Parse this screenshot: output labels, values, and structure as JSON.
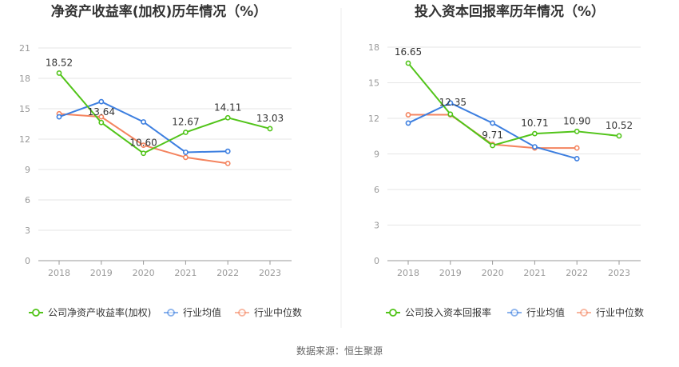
{
  "source_label": "数据来源：恒生聚源",
  "colors": {
    "company": "#52c41a",
    "industry_avg": "#3d7fe0",
    "industry_median": "#f4845f",
    "grid": "#e6e6e6",
    "axis": "#999999"
  },
  "chart_data": [
    {
      "type": "line",
      "title": "净资产收益率(加权)历年情况（%）",
      "categories": [
        "2018",
        "2019",
        "2020",
        "2021",
        "2022",
        "2023"
      ],
      "ylim": [
        0,
        21
      ],
      "yticks": [
        0,
        3,
        6,
        9,
        12,
        15,
        18,
        21
      ],
      "grid": true,
      "legend_position": "bottom",
      "series": [
        {
          "name": "公司净资产收益率(加权)",
          "color_key": "company",
          "show_labels": true,
          "values": [
            18.52,
            13.64,
            10.6,
            12.67,
            14.11,
            13.03
          ],
          "labels": [
            "18.52",
            "13.64",
            "10.60",
            "12.67",
            "14.11",
            "13.03"
          ]
        },
        {
          "name": "行业均值",
          "color_key": "industry_avg",
          "show_labels": false,
          "values": [
            14.2,
            15.7,
            13.7,
            10.7,
            10.8,
            null
          ]
        },
        {
          "name": "行业中位数",
          "color_key": "industry_median",
          "show_labels": false,
          "values": [
            14.5,
            14.2,
            11.4,
            10.2,
            9.6,
            null
          ]
        }
      ]
    },
    {
      "type": "line",
      "title": "投入资本回报率历年情况（%）",
      "categories": [
        "2018",
        "2019",
        "2020",
        "2021",
        "2022",
        "2023"
      ],
      "ylim": [
        0,
        18
      ],
      "yticks": [
        0,
        3,
        6,
        9,
        12,
        15,
        18
      ],
      "grid": true,
      "legend_position": "bottom",
      "series": [
        {
          "name": "公司投入资本回报率",
          "color_key": "company",
          "show_labels": true,
          "values": [
            16.65,
            12.35,
            9.71,
            10.71,
            10.9,
            10.52
          ],
          "labels": [
            "16.65",
            "12.35",
            "9.71",
            "10.71",
            "10.90",
            "10.52"
          ]
        },
        {
          "name": "行业均值",
          "color_key": "industry_avg",
          "show_labels": false,
          "values": [
            11.6,
            13.3,
            11.6,
            9.6,
            8.6,
            null
          ]
        },
        {
          "name": "行业中位数",
          "color_key": "industry_median",
          "show_labels": false,
          "values": [
            12.3,
            12.3,
            9.8,
            9.5,
            9.5,
            null
          ]
        }
      ]
    }
  ]
}
